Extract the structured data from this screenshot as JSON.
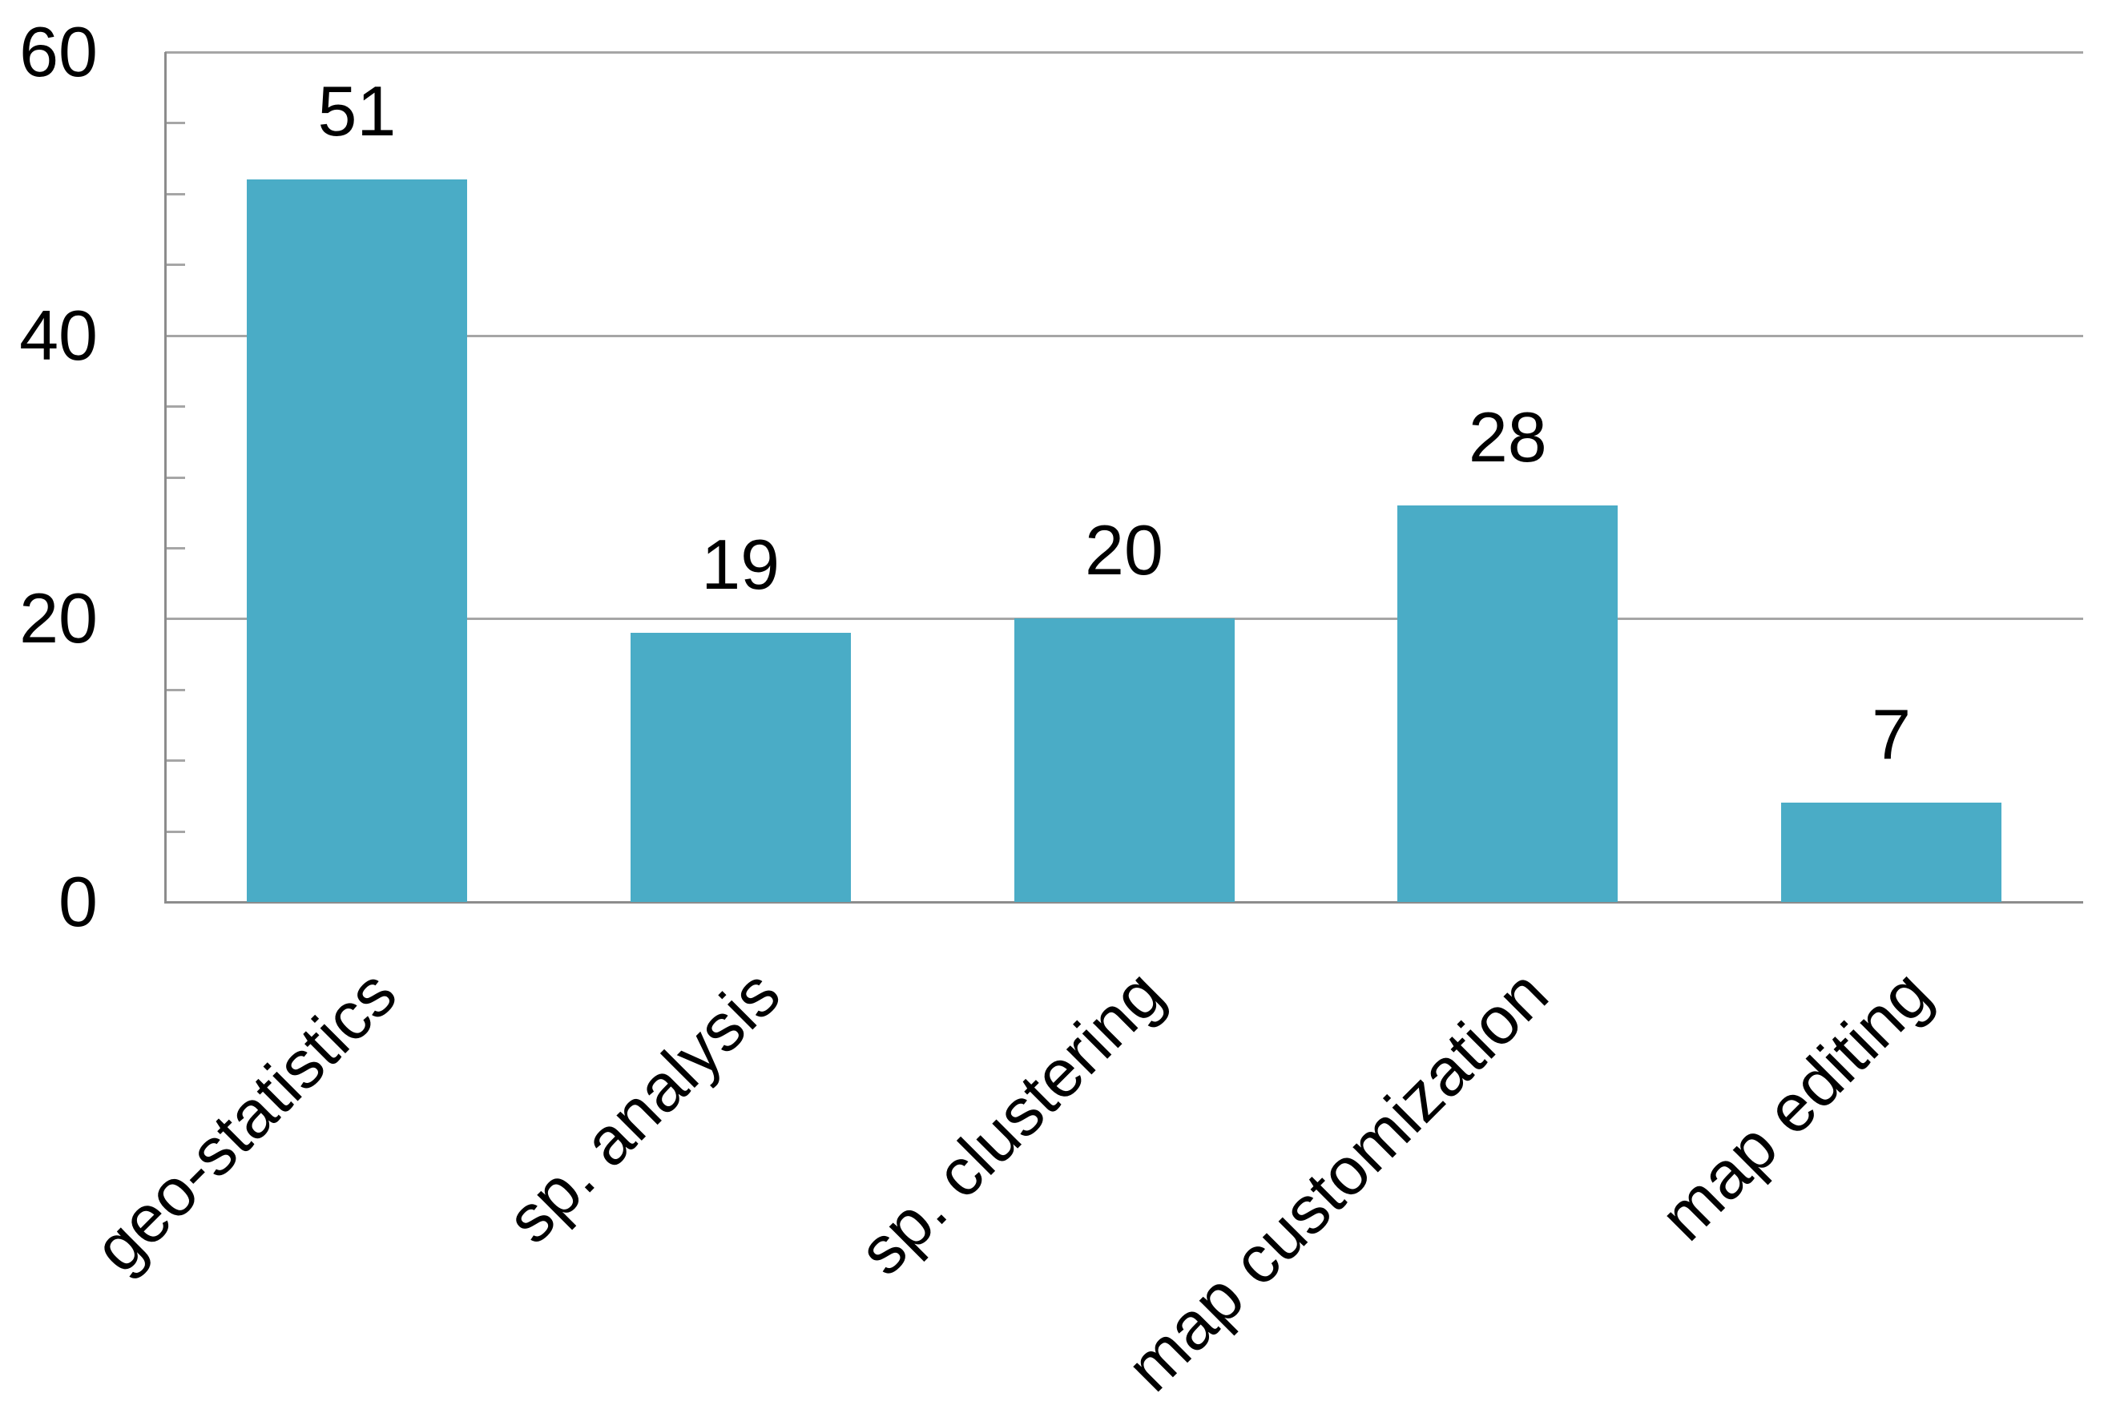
{
  "chart_data": {
    "type": "bar",
    "title": "",
    "xlabel": "",
    "ylabel": "",
    "categories": [
      "geo-statistics",
      "sp. analysis",
      "sp. clustering",
      "map customization",
      "map editing"
    ],
    "values": [
      51,
      19,
      20,
      28,
      7
    ],
    "data_labels": [
      "51",
      "19",
      "20",
      "28",
      "7"
    ],
    "ylim": [
      0,
      60
    ],
    "yticks": [
      0,
      20,
      40,
      60
    ],
    "ytick_labels": [
      "0",
      "20",
      "40",
      "60"
    ],
    "minor_tick_step": 5,
    "grid": true,
    "legend_position": "none",
    "colors": {
      "bar_fill": "#4AACC6",
      "gridline": "#A6A6A6",
      "axis": "#8C8C8C",
      "text": "#000000",
      "background": "#FFFFFF"
    }
  }
}
